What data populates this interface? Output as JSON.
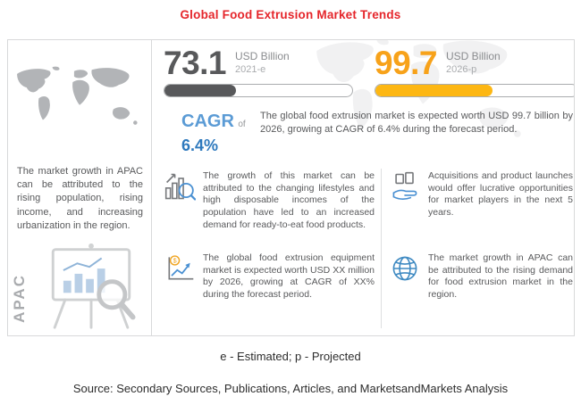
{
  "title": "Global Food Extrusion Market Trends",
  "colors": {
    "title_red": "#e5262b",
    "dark_gray": "#58595b",
    "amber_number": "#f7a21a",
    "bar_yellow": "#fdb713",
    "cagr_blue": "#5b9bd5",
    "text_gray": "#58595b"
  },
  "left_panel": {
    "region_label": "APAC",
    "text": "The market growth in APAC can be attributed to the rising population, rising income, and increasing urbanization in the region.",
    "map_icon": "world-map-graphic",
    "illustration_icon": "presentation-chart-illustration"
  },
  "stats": {
    "current": {
      "value": "73.1",
      "unit": "USD Billion",
      "year": "2021-e",
      "fill_percent": 38
    },
    "projected": {
      "value": "99.7",
      "unit": "USD Billion",
      "year": "2026-p",
      "fill_percent": 58
    }
  },
  "cagr": {
    "label": "CAGR",
    "of": "of",
    "value": "6.4%",
    "description": "The global food extrusion market is expected worth USD 99.7 billion by 2026, growing at CAGR of 6.4% during the forecast period."
  },
  "highlights": [
    {
      "icon": "chart-magnifier-icon",
      "text": "The growth of this market can be attributed to the changing lifestyles and high disposable incomes of the population have led to an increased demand for ready-to-eat food products."
    },
    {
      "icon": "product-launch-icon",
      "text": "Acquisitions and product launches would offer lucrative opportunities for market players in the next 5 years."
    },
    {
      "icon": "growth-chart-icon",
      "text": "The global food extrusion equipment market is expected worth USD XX million by 2026, growing at CAGR of XX% during the forecast period."
    },
    {
      "icon": "globe-icon",
      "text": "The market growth in APAC can be attributed to the rising demand for food extrusion market in the region."
    }
  ],
  "footnote": "e - Estimated; p - Projected",
  "source": "Source: Secondary Sources, Publications, Articles, and MarketsandMarkets Analysis",
  "chart_data": {
    "type": "bar",
    "categories": [
      "2021-e",
      "2026-p"
    ],
    "values": [
      73.1,
      99.7
    ],
    "unit": "USD Billion",
    "title": "Global Food Extrusion Market Trends",
    "cagr_percent": 6.4,
    "notes": "e - Estimated; p - Projected"
  }
}
